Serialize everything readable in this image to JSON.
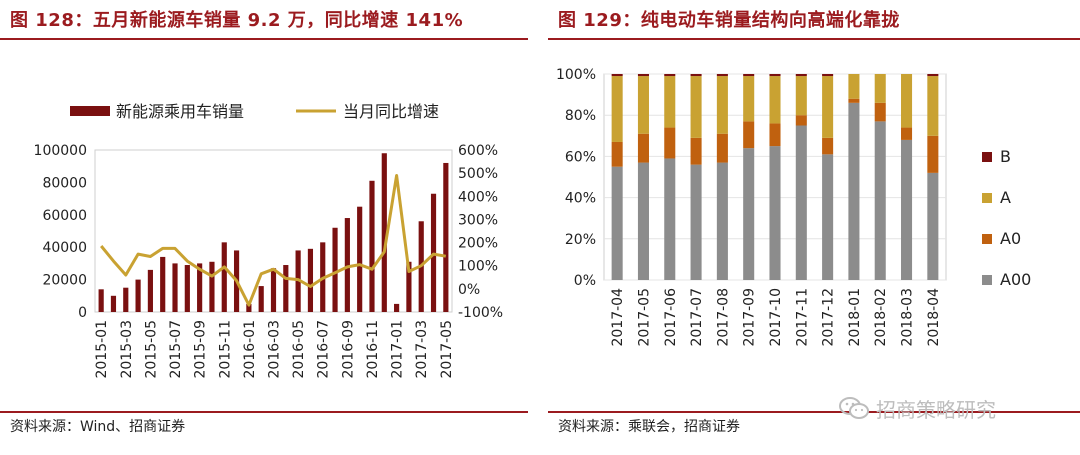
{
  "figures": {
    "left": {
      "title": "图 128：五月新能源车销量 9.2 万，同比增速 141%",
      "source": "资料来源：Wind、招商证券"
    },
    "right": {
      "title": "图 129：纯电动车销量结构向高端化靠拢",
      "source": "资料来源：乘联会，招商证券"
    }
  },
  "watermark": {
    "text": "招商策略研究",
    "icon": "wechat-icon"
  },
  "colors": {
    "accent": "#9b1b1f",
    "bar": "#7a1010",
    "line": "#c9a232",
    "B": "#7a1010",
    "A": "#c9a232",
    "A0": "#c0610f",
    "A00": "#8c8c8c"
  },
  "chart_data": [
    {
      "type": "bar",
      "title": "五月新能源车销量 9.2 万，同比增速 141%",
      "categories": [
        "2015-01",
        "2015-02",
        "2015-03",
        "2015-04",
        "2015-05",
        "2015-06",
        "2015-07",
        "2015-08",
        "2015-09",
        "2015-10",
        "2015-11",
        "2015-12",
        "2016-01",
        "2016-02",
        "2016-03",
        "2016-04",
        "2016-05",
        "2016-06",
        "2016-07",
        "2016-08",
        "2016-09",
        "2016-10",
        "2016-11",
        "2016-12",
        "2017-01",
        "2017-02",
        "2017-03",
        "2017-04",
        "2017-05"
      ],
      "tick_labels": [
        "2015-01",
        "2015-03",
        "2015-05",
        "2015-07",
        "2015-09",
        "2015-11",
        "2016-01",
        "2016-03",
        "2016-05",
        "2016-07",
        "2016-09",
        "2016-11",
        "2017-01",
        "2017-03",
        "2017-05"
      ],
      "series": [
        {
          "name": "新能源乘用车销量",
          "type": "bar",
          "axis": "left",
          "values": [
            14000,
            10000,
            15000,
            20000,
            26000,
            34000,
            30000,
            29000,
            30000,
            31000,
            43000,
            38000,
            5000,
            16000,
            27000,
            29000,
            38000,
            39000,
            43000,
            52000,
            58000,
            65000,
            81000,
            98000,
            5000,
            31000,
            56000,
            73000,
            92000
          ]
        },
        {
          "name": "当月同比增速",
          "type": "line",
          "axis": "right",
          "values": [
            185,
            120,
            60,
            150,
            140,
            175,
            175,
            120,
            85,
            55,
            95,
            35,
            -70,
            65,
            85,
            45,
            40,
            10,
            45,
            70,
            95,
            105,
            85,
            160,
            490,
            75,
            100,
            150,
            141
          ]
        }
      ],
      "y_left": {
        "min": 0,
        "max": 100000,
        "ticks": [
          0,
          20000,
          40000,
          60000,
          80000,
          100000
        ]
      },
      "y_right": {
        "min": -100,
        "max": 600,
        "ticks": [
          "-100%",
          "0%",
          "100%",
          "200%",
          "300%",
          "400%",
          "500%",
          "600%"
        ]
      },
      "legend": "top"
    },
    {
      "type": "bar",
      "stacked": true,
      "title": "纯电动车销量结构向高端化靠拢",
      "categories": [
        "2017-04",
        "2017-05",
        "2017-06",
        "2017-07",
        "2017-08",
        "2017-09",
        "2017-10",
        "2017-11",
        "2017-12",
        "2018-01",
        "2018-02",
        "2018-03",
        "2018-04"
      ],
      "series": [
        {
          "name": "A00",
          "values": [
            55,
            57,
            59,
            56,
            57,
            64,
            65,
            75,
            61,
            86,
            77,
            68,
            52
          ]
        },
        {
          "name": "A0",
          "values": [
            12,
            14,
            15,
            13,
            14,
            13,
            11,
            5,
            8,
            2,
            9,
            6,
            18
          ]
        },
        {
          "name": "A",
          "values": [
            32,
            28,
            25,
            30,
            28,
            22,
            23,
            19,
            30,
            12,
            14,
            26,
            29
          ]
        },
        {
          "name": "B",
          "values": [
            1,
            1,
            1,
            1,
            1,
            1,
            1,
            1,
            1,
            0,
            0,
            0,
            1
          ]
        }
      ],
      "y_ticks": [
        "0%",
        "20%",
        "40%",
        "60%",
        "80%",
        "100%"
      ],
      "ylim": [
        0,
        100
      ],
      "legend_order": [
        "B",
        "A",
        "A0",
        "A00"
      ],
      "legend": "right"
    }
  ]
}
